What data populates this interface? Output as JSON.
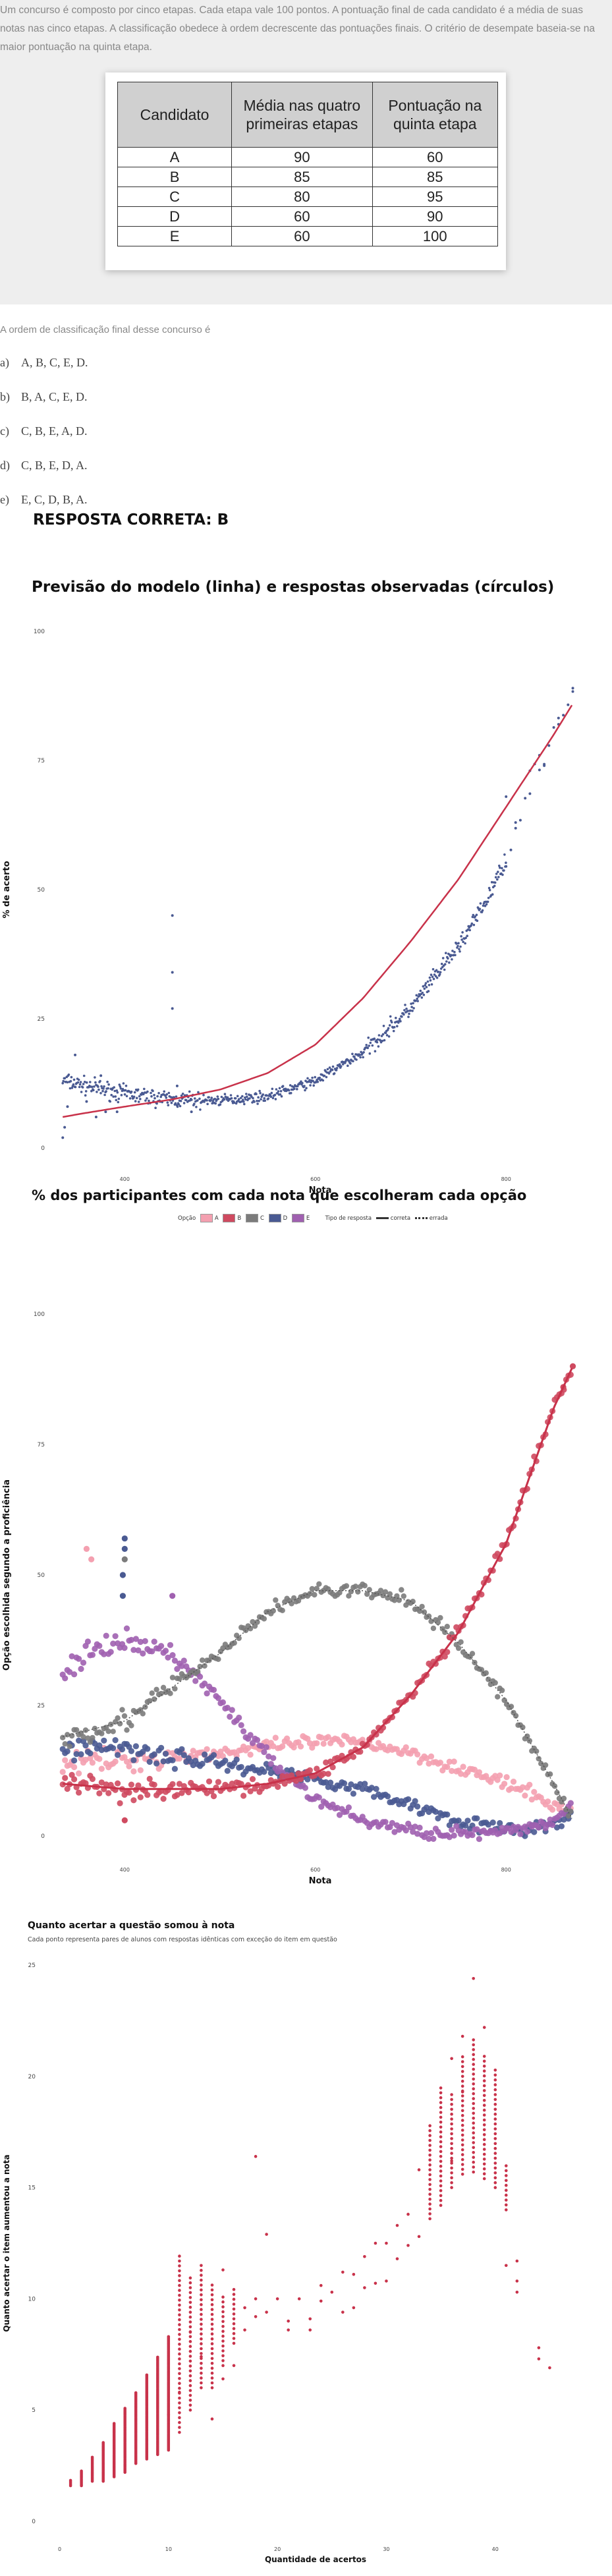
{
  "question": {
    "intro": "Um concurso é composto por cinco etapas. Cada etapa vale 100 pontos. A pontuação final de cada candidato é a média de suas notas nas cinco etapas. A classificação obedece à ordem decrescente das pontuações finais. O critério de desempate baseia-se na maior pontuação na quinta etapa.",
    "table": {
      "headers": [
        "Candidato",
        "Média nas quatro primeiras etapas",
        "Pontuação na quinta etapa"
      ],
      "rows": [
        [
          "A",
          "90",
          "60"
        ],
        [
          "B",
          "85",
          "85"
        ],
        [
          "C",
          "80",
          "95"
        ],
        [
          "D",
          "60",
          "90"
        ],
        [
          "E",
          "60",
          "100"
        ]
      ]
    },
    "prompt": "A ordem de classificação final desse concurso é",
    "options": [
      {
        "letter": "a)",
        "text": "A, B, C, E, D."
      },
      {
        "letter": "b)",
        "text": "B, A, C, E, D."
      },
      {
        "letter": "c)",
        "text": "C, B, E, A, D."
      },
      {
        "letter": "d)",
        "text": "C, B, E, D, A."
      },
      {
        "letter": "e)",
        "text": "E, C, D, B, A."
      }
    ],
    "answer": "RESPOSTA CORRETA: B"
  },
  "colors": {
    "A": "#f4a0b0",
    "B": "#cf4a60",
    "C": "#7b7b7b",
    "D": "#4a5a92",
    "E": "#a060b0",
    "model_line": "#c8324a",
    "observed": "#4a5a92",
    "gain": "#c8324a"
  },
  "chart_data": [
    {
      "type": "scatter",
      "title": "Previsão do modelo (linha) e respostas observadas (círculos)",
      "xlabel": "Nota",
      "ylabel": "% de acerto",
      "xlim": [
        330,
        880
      ],
      "ylim": [
        0,
        100
      ],
      "xticks": [
        {
          "v": 400,
          "label": "400"
        },
        {
          "v": 600,
          "label": "600"
        },
        {
          "v": 800,
          "label": "800"
        }
      ],
      "yticks": [
        0,
        25,
        50,
        75,
        100
      ],
      "grid": false,
      "legend": "none",
      "model_curve": {
        "x": [
          335,
          360,
          400,
          450,
          500,
          550,
          600,
          650,
          700,
          750,
          800,
          850,
          870
        ],
        "y": [
          6,
          6.8,
          8,
          9.4,
          11.3,
          14.5,
          20,
          29,
          40,
          52,
          66,
          80,
          86
        ]
      },
      "observed_trend": {
        "x": [
          335,
          360,
          400,
          450,
          500,
          550,
          600,
          650,
          700,
          750,
          780,
          800,
          830,
          870
        ],
        "y": [
          13,
          12,
          10.5,
          9.3,
          9.2,
          10,
          13,
          18.5,
          27,
          39,
          48,
          56,
          72,
          89
        ]
      },
      "observed_outliers": [
        {
          "x": 335,
          "y": 2
        },
        {
          "x": 337,
          "y": 4
        },
        {
          "x": 340,
          "y": 8
        },
        {
          "x": 348,
          "y": 18
        },
        {
          "x": 360,
          "y": 9
        },
        {
          "x": 370,
          "y": 6
        },
        {
          "x": 380,
          "y": 7
        },
        {
          "x": 392,
          "y": 7
        },
        {
          "x": 375,
          "y": 14
        },
        {
          "x": 450,
          "y": 45
        },
        {
          "x": 450,
          "y": 34
        },
        {
          "x": 450,
          "y": 27
        },
        {
          "x": 455,
          "y": 12
        },
        {
          "x": 470,
          "y": 7
        },
        {
          "x": 800,
          "y": 68
        },
        {
          "x": 810,
          "y": 63
        },
        {
          "x": 825,
          "y": 73
        },
        {
          "x": 835,
          "y": 76
        },
        {
          "x": 840,
          "y": 74
        },
        {
          "x": 855,
          "y": 82
        },
        {
          "x": 870,
          "y": 89
        }
      ]
    },
    {
      "type": "scatter",
      "title": "% dos participantes com cada nota que escolheram cada opção",
      "xlabel": "Nota",
      "ylabel": "Opção escolhida segundo a proficiência",
      "xlim": [
        330,
        880
      ],
      "ylim": [
        0,
        100
      ],
      "xticks": [
        {
          "v": 400,
          "label": "400"
        },
        {
          "v": 600,
          "label": "600"
        },
        {
          "v": 800,
          "label": "800"
        }
      ],
      "yticks": [
        0,
        25,
        50,
        75,
        100
      ],
      "grid": false,
      "legend": "top",
      "legend_items": {
        "option_title": "Opção",
        "options": [
          "A",
          "B",
          "C",
          "D",
          "E"
        ],
        "type_title": "Tipo de resposta",
        "types": [
          "correta",
          "errada"
        ]
      },
      "correct_option": "B",
      "series": [
        {
          "name": "A",
          "x": [
            335,
            400,
            500,
            550,
            600,
            650,
            700,
            750,
            800,
            850,
            870
          ],
          "y": [
            14,
            14.5,
            16,
            17,
            18,
            18,
            16,
            13,
            10,
            6,
            4
          ]
        },
        {
          "name": "B",
          "x": [
            335,
            400,
            500,
            550,
            600,
            650,
            700,
            750,
            800,
            850,
            870
          ],
          "y": [
            10,
            9,
            9,
            10,
            12,
            17,
            27,
            39,
            56,
            82,
            90
          ]
        },
        {
          "name": "C",
          "x": [
            335,
            400,
            500,
            550,
            600,
            650,
            700,
            750,
            800,
            850,
            870
          ],
          "y": [
            19,
            22,
            35,
            43,
            47,
            47,
            45,
            37,
            26,
            10,
            3
          ]
        },
        {
          "name": "D",
          "x": [
            335,
            400,
            450,
            500,
            550,
            600,
            650,
            700,
            750,
            800,
            850,
            870
          ],
          "y": [
            17,
            17,
            15,
            14,
            12.5,
            11,
            9,
            6,
            3,
            1,
            2,
            4
          ]
        },
        {
          "name": "E",
          "x": [
            335,
            350,
            400,
            450,
            500,
            550,
            600,
            650,
            700,
            750,
            800,
            850,
            870
          ],
          "y": [
            30,
            34,
            37,
            35,
            26,
            15,
            7,
            3,
            1,
            0.5,
            0.5,
            3,
            6
          ]
        }
      ]
    },
    {
      "type": "scatter",
      "title": "Quanto acertar a questão somou à nota",
      "subtitle": "Cada ponto representa pares de alunos com respostas idênticas com exceção do item em questão",
      "xlabel": "Quantidade de acertos",
      "ylabel": "Quanto acertar o item aumentou a nota",
      "xlim": [
        -1,
        48
      ],
      "ylim": [
        0,
        25
      ],
      "xticks": [
        {
          "v": 0,
          "label": "0"
        },
        {
          "v": 10,
          "label": "10"
        },
        {
          "v": 20,
          "label": "20"
        },
        {
          "v": 30,
          "label": "30"
        },
        {
          "v": 40,
          "label": "40"
        }
      ],
      "yticks": [
        0,
        5,
        10,
        15,
        20,
        25
      ],
      "grid": false,
      "legend": "none",
      "columns": [
        {
          "x": 1,
          "ymin": 1.6,
          "ymax": 1.9
        },
        {
          "x": 2,
          "ymin": 1.6,
          "ymax": 2.3
        },
        {
          "x": 3,
          "ymin": 1.8,
          "ymax": 2.9
        },
        {
          "x": 4,
          "ymin": 1.8,
          "ymax": 3.6
        },
        {
          "x": 5,
          "ymin": 2.0,
          "ymax": 4.4
        },
        {
          "x": 6,
          "ymin": 2.2,
          "ymax": 5.1
        },
        {
          "x": 7,
          "ymin": 2.6,
          "ymax": 5.8
        },
        {
          "x": 8,
          "ymin": 2.8,
          "ymax": 6.6
        },
        {
          "x": 9,
          "ymin": 3.0,
          "ymax": 7.4
        },
        {
          "x": 10,
          "ymin": 3.2,
          "ymax": 8.3
        },
        {
          "x": 11,
          "ymin": 4.0,
          "ymax": 12.0
        },
        {
          "x": 12,
          "ymin": 5.0,
          "ymax": 11.0
        },
        {
          "x": 13,
          "ymin": 6.0,
          "ymax": 11.6
        },
        {
          "x": 14,
          "ymin": 6.0,
          "ymax": 10.8
        },
        {
          "x": 15,
          "ymin": 7.0,
          "ymax": 10.2
        },
        {
          "x": 16,
          "ymin": 8.0,
          "ymax": 10.6
        },
        {
          "x": 34,
          "ymin": 13.6,
          "ymax": 17.8
        },
        {
          "x": 35,
          "ymin": 14.2,
          "ymax": 19.6
        },
        {
          "x": 36,
          "ymin": 15.0,
          "ymax": 19.3
        },
        {
          "x": 37,
          "ymin": 15.6,
          "ymax": 21.0
        },
        {
          "x": 38,
          "ymin": 15.7,
          "ymax": 21.7
        },
        {
          "x": 39,
          "ymin": 15.4,
          "ymax": 20.9
        },
        {
          "x": 40,
          "ymin": 15.0,
          "ymax": 20.4
        },
        {
          "x": 41,
          "ymin": 14.0,
          "ymax": 16.0
        }
      ],
      "points": [
        {
          "x": 10,
          "y": 4.8
        },
        {
          "x": 11,
          "y": 5.8
        },
        {
          "x": 12,
          "y": 8.5
        },
        {
          "x": 13,
          "y": 7.4
        },
        {
          "x": 14,
          "y": 4.6
        },
        {
          "x": 15,
          "y": 6.4
        },
        {
          "x": 15,
          "y": 11.3
        },
        {
          "x": 16,
          "y": 7.0
        },
        {
          "x": 17,
          "y": 8.6
        },
        {
          "x": 17,
          "y": 9.6
        },
        {
          "x": 18,
          "y": 9.2
        },
        {
          "x": 18,
          "y": 10.0
        },
        {
          "x": 18,
          "y": 16.4
        },
        {
          "x": 19,
          "y": 9.4
        },
        {
          "x": 19,
          "y": 12.9
        },
        {
          "x": 20,
          "y": 10.0
        },
        {
          "x": 21,
          "y": 9.0
        },
        {
          "x": 21,
          "y": 8.6
        },
        {
          "x": 22,
          "y": 10.0
        },
        {
          "x": 23,
          "y": 8.6
        },
        {
          "x": 23,
          "y": 9.1
        },
        {
          "x": 24,
          "y": 9.9
        },
        {
          "x": 24,
          "y": 10.6
        },
        {
          "x": 25,
          "y": 10.3
        },
        {
          "x": 26,
          "y": 9.4
        },
        {
          "x": 26,
          "y": 11.2
        },
        {
          "x": 27,
          "y": 9.6
        },
        {
          "x": 27,
          "y": 11.1
        },
        {
          "x": 28,
          "y": 10.5
        },
        {
          "x": 28,
          "y": 11.9
        },
        {
          "x": 29,
          "y": 10.7
        },
        {
          "x": 29,
          "y": 12.5
        },
        {
          "x": 30,
          "y": 10.8
        },
        {
          "x": 30,
          "y": 12.5
        },
        {
          "x": 31,
          "y": 11.8
        },
        {
          "x": 31,
          "y": 13.3
        },
        {
          "x": 32,
          "y": 12.4
        },
        {
          "x": 32,
          "y": 13.8
        },
        {
          "x": 33,
          "y": 12.8
        },
        {
          "x": 33,
          "y": 15.8
        },
        {
          "x": 36,
          "y": 16.2
        },
        {
          "x": 36,
          "y": 20.8
        },
        {
          "x": 37,
          "y": 19.3
        },
        {
          "x": 37,
          "y": 21.8
        },
        {
          "x": 38,
          "y": 24.4
        },
        {
          "x": 39,
          "y": 22.2
        },
        {
          "x": 41,
          "y": 11.5
        },
        {
          "x": 42,
          "y": 11.7
        },
        {
          "x": 42,
          "y": 10.8
        },
        {
          "x": 42,
          "y": 10.3
        },
        {
          "x": 44,
          "y": 7.8
        },
        {
          "x": 44,
          "y": 7.3
        },
        {
          "x": 45,
          "y": 6.9
        }
      ]
    }
  ]
}
